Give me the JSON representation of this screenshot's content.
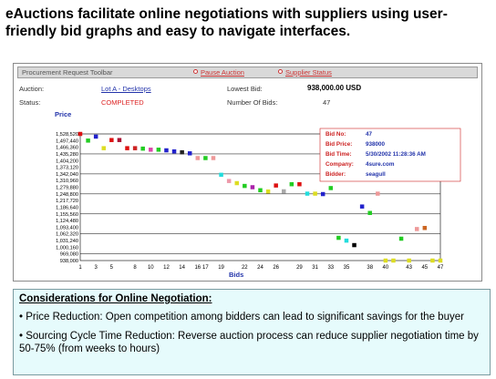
{
  "headline": "eAuctions facilitate online negotiations with suppliers using user-friendly bid graphs and easy to navigate interfaces.",
  "toolbar": {
    "title": "Procurement Request Toolbar",
    "pause_label": "Pause Auction",
    "status_label": "Supplier Status"
  },
  "info": {
    "auction_label": "Auction:",
    "auction_value": "Lot A - Desktops",
    "status_label": "Status:",
    "status_value": "COMPLETED",
    "lowest_bid_label": "Lowest Bid:",
    "lowest_bid_value": "938,000.00 USD",
    "num_bids_label": "Number Of Bids:",
    "num_bids_value": "47"
  },
  "tooltip": {
    "rows": [
      {
        "label": "Bid No:",
        "value": "47"
      },
      {
        "label": "Bid Price:",
        "value": "938000"
      },
      {
        "label": "Bid Time:",
        "value": "5/30/2002 11:28:36 AM"
      },
      {
        "label": "Company:",
        "value": "4sure.com"
      },
      {
        "label": "Bidder:",
        "value": "seagull"
      }
    ]
  },
  "chart_data": {
    "type": "scatter",
    "ylabel": "Price",
    "xlabel": "Bids",
    "xlim": [
      1,
      47
    ],
    "ylim": [
      938000,
      1528520
    ],
    "y_ticks": [
      "1,528,520",
      "1,497,440",
      "1,466,360",
      "1,435,280",
      "1,404,200",
      "1,373,120",
      "1,342,040",
      "1,310,960",
      "1,279,880",
      "1,248,800",
      "1,217,720",
      "1,186,640",
      "1,155,560",
      "1,124,480",
      "1,093,400",
      "1,062,320",
      "1,031,240",
      "1,000,160",
      "969,080",
      "938,000"
    ],
    "x_ticks": [
      "1",
      "3",
      "5",
      "8",
      "10",
      "12",
      "14",
      "16",
      "17",
      "19",
      "22",
      "24",
      "26",
      "29",
      "31",
      "33",
      "35",
      "38",
      "40",
      "43",
      "45",
      "47"
    ],
    "points": [
      {
        "x": 1,
        "y": 1528520,
        "color": "#dd1111"
      },
      {
        "x": 2,
        "y": 1497440,
        "color": "#22cc22"
      },
      {
        "x": 3,
        "y": 1516000,
        "color": "#2222cc"
      },
      {
        "x": 4,
        "y": 1462000,
        "color": "#dddd22"
      },
      {
        "x": 5,
        "y": 1500000,
        "color": "#dd1111"
      },
      {
        "x": 6,
        "y": 1500000,
        "color": "#aa1133"
      },
      {
        "x": 7,
        "y": 1462000,
        "color": "#dd1111"
      },
      {
        "x": 8,
        "y": 1462000,
        "color": "#cc2222"
      },
      {
        "x": 9,
        "y": 1460000,
        "color": "#22cc22"
      },
      {
        "x": 10,
        "y": 1455000,
        "color": "#dd44aa"
      },
      {
        "x": 11,
        "y": 1455000,
        "color": "#22cc22"
      },
      {
        "x": 12,
        "y": 1452000,
        "color": "#2222cc"
      },
      {
        "x": 13,
        "y": 1447000,
        "color": "#2222cc"
      },
      {
        "x": 14,
        "y": 1443000,
        "color": "#222222"
      },
      {
        "x": 15,
        "y": 1438000,
        "color": "#2222cc"
      },
      {
        "x": 16,
        "y": 1416000,
        "color": "#ee9999"
      },
      {
        "x": 17,
        "y": 1416000,
        "color": "#22cc22"
      },
      {
        "x": 18,
        "y": 1416000,
        "color": "#ee9999"
      },
      {
        "x": 19,
        "y": 1338000,
        "color": "#22dddd"
      },
      {
        "x": 20,
        "y": 1309000,
        "color": "#ee99aa"
      },
      {
        "x": 21,
        "y": 1299000,
        "color": "#dddd22"
      },
      {
        "x": 22,
        "y": 1286000,
        "color": "#22cc22"
      },
      {
        "x": 23,
        "y": 1280000,
        "color": "#aa22aa"
      },
      {
        "x": 24,
        "y": 1266000,
        "color": "#22cc22"
      },
      {
        "x": 25,
        "y": 1260000,
        "color": "#dddd22"
      },
      {
        "x": 26,
        "y": 1288000,
        "color": "#dd1111"
      },
      {
        "x": 27,
        "y": 1261000,
        "color": "#aaaaaa"
      },
      {
        "x": 28,
        "y": 1294000,
        "color": "#22cc22"
      },
      {
        "x": 29,
        "y": 1294000,
        "color": "#dd1111"
      },
      {
        "x": 30,
        "y": 1250000,
        "color": "#22dddd"
      },
      {
        "x": 31,
        "y": 1250000,
        "color": "#dddd22"
      },
      {
        "x": 32,
        "y": 1248000,
        "color": "#2222cc"
      },
      {
        "x": 33,
        "y": 1276000,
        "color": "#22cc22"
      },
      {
        "x": 34,
        "y": 1044000,
        "color": "#22cc22"
      },
      {
        "x": 35,
        "y": 1031000,
        "color": "#22dddd"
      },
      {
        "x": 36,
        "y": 1010000,
        "color": "#000000"
      },
      {
        "x": 37,
        "y": 1190000,
        "color": "#2222cc"
      },
      {
        "x": 38,
        "y": 1160000,
        "color": "#22cc22"
      },
      {
        "x": 39,
        "y": 1250000,
        "color": "#ee9999"
      },
      {
        "x": 40,
        "y": 938000,
        "color": "#dddd22"
      },
      {
        "x": 41,
        "y": 938000,
        "color": "#dddd22"
      },
      {
        "x": 42,
        "y": 1040000,
        "color": "#22cc22"
      },
      {
        "x": 43,
        "y": 938000,
        "color": "#dddd22"
      },
      {
        "x": 44,
        "y": 1085000,
        "color": "#ee9999"
      },
      {
        "x": 45,
        "y": 1090000,
        "color": "#cc6622"
      },
      {
        "x": 46,
        "y": 938000,
        "color": "#dddd22"
      },
      {
        "x": 47,
        "y": 938000,
        "color": "#dddd22"
      }
    ]
  },
  "considerations": {
    "title": "Considerations for Online Negotiation:",
    "bullets": [
      "• Price Reduction: Open competition among bidders can lead to significant savings for the buyer",
      "• Sourcing Cycle Time Reduction: Reverse auction process can reduce supplier negotiation time by 50-75% (from weeks to hours)"
    ]
  }
}
